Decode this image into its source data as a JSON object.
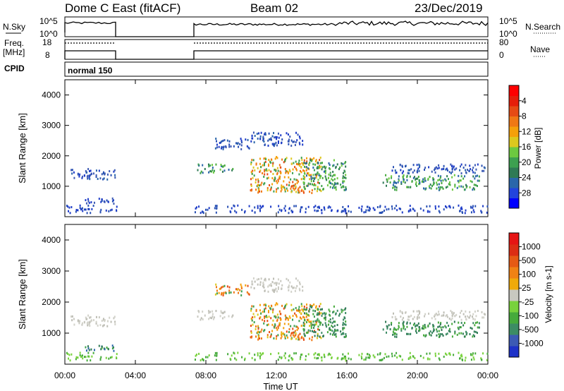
{
  "header": {
    "station": "Dome C East (fitACF)",
    "beam": "Beam 02",
    "date": "23/Dec/2019"
  },
  "top_panels": {
    "nsky_label": "N.Sky",
    "nsky_ticks": [
      "10^5",
      "10^0"
    ],
    "nsearch_label": "N.Search",
    "nsearch_ticks": [
      "10^5",
      "10^0"
    ],
    "freq_label_1": "Freq.",
    "freq_label_2": "[MHz]",
    "freq_ticks": [
      "18",
      "8"
    ],
    "nave_label": "Nave",
    "nave_ticks": [
      "80",
      "0"
    ],
    "cpid_label": "CPID",
    "cpid_value": "normal 150"
  },
  "chart_data": [
    {
      "type": "heatmap",
      "name": "power-panel",
      "ylabel": "Slant Range [km]",
      "xlabel": "Time UT",
      "xlim_hours": [
        0,
        24
      ],
      "ylim": [
        0,
        4500
      ],
      "x_tick_labels": [
        "00:00",
        "04:00",
        "08:00",
        "12:00",
        "16:00",
        "20:00",
        "00:00"
      ],
      "y_tick_labels": [
        "1000",
        "2000",
        "3000",
        "4000"
      ],
      "y_ticks": [
        1000,
        2000,
        3000,
        4000
      ],
      "colorbar": {
        "label": "Power [dB]",
        "tick_labels": [
          "4",
          "8",
          "12",
          "16",
          "20",
          "24",
          "28"
        ],
        "colors": [
          "#0000ff",
          "#2244dd",
          "#2a66aa",
          "#2f7a55",
          "#3da050",
          "#6dc940",
          "#dcc81e",
          "#f5a00a",
          "#f07814",
          "#e64b14",
          "#e61e0a",
          "#ff0000"
        ]
      }
    },
    {
      "type": "heatmap",
      "name": "velocity-panel",
      "ylabel": "Slant Range [km]",
      "xlabel": "Time UT",
      "xlim_hours": [
        0,
        24
      ],
      "ylim": [
        0,
        4500
      ],
      "x_tick_labels": [
        "00:00",
        "04:00",
        "08:00",
        "12:00",
        "16:00",
        "20:00",
        "00:00"
      ],
      "y_tick_labels": [
        "1000",
        "2000",
        "3000",
        "4000"
      ],
      "y_ticks": [
        1000,
        2000,
        3000,
        4000
      ],
      "colorbar": {
        "label": "Velocity [m s-1]",
        "tick_labels": [
          "1000",
          "500",
          "100",
          "25",
          "-25",
          "-100",
          "-500",
          "-1000"
        ],
        "colors": [
          "#1e32c8",
          "#3c5ab4",
          "#3c8c64",
          "#46aa3c",
          "#78d23c",
          "#c8c8c0",
          "#f0aa0a",
          "#f08214",
          "#e65a14",
          "#dc2d14",
          "#e61414"
        ]
      }
    }
  ],
  "scatter_regions": [
    {
      "t0": 0.2,
      "t1": 2.9,
      "r0": 1250,
      "r1": 1600,
      "p": "blue",
      "v": "grey"
    },
    {
      "t0": 1.0,
      "t1": 2.9,
      "r0": 450,
      "r1": 650,
      "p": "blue",
      "v": "green"
    },
    {
      "t0": 7.5,
      "t1": 9.5,
      "r0": 1450,
      "r1": 1750,
      "p": "green",
      "v": "grey"
    },
    {
      "t0": 8.5,
      "t1": 10.5,
      "r0": 2250,
      "r1": 2600,
      "p": "blue",
      "v": "orange"
    },
    {
      "t0": 10.5,
      "t1": 13.5,
      "r0": 2350,
      "r1": 2800,
      "p": "blue",
      "v": "grey"
    },
    {
      "t0": 10.5,
      "t1": 14.5,
      "r0": 800,
      "r1": 2000,
      "p": "orange",
      "v": "orange"
    },
    {
      "t0": 13.5,
      "t1": 16.0,
      "r0": 900,
      "r1": 1900,
      "p": "green",
      "v": "teal"
    },
    {
      "t0": 18.0,
      "t1": 23.5,
      "r0": 900,
      "r1": 1400,
      "p": "green",
      "v": "teal"
    },
    {
      "t0": 18.5,
      "t1": 23.8,
      "r0": 1450,
      "r1": 1750,
      "p": "blue",
      "v": "grey"
    }
  ]
}
